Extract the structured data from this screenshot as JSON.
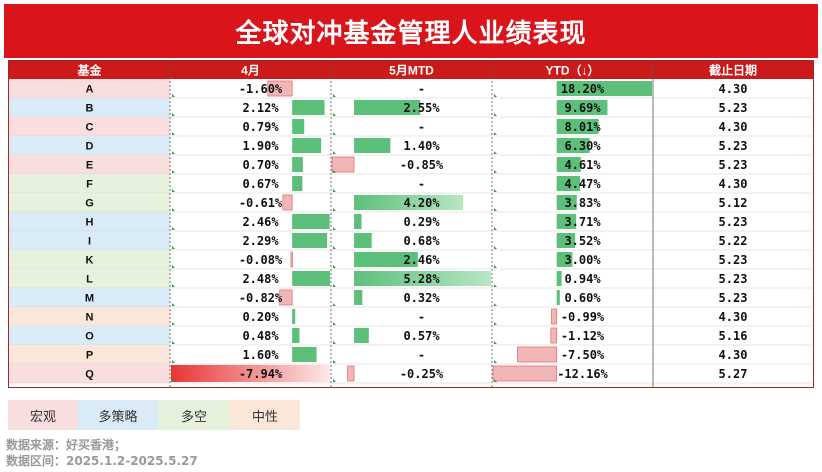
{
  "title": "全球对冲基金管理人业绩表现",
  "colors": {
    "banner": "#d9141b",
    "header": "#cc1a1a",
    "positive_bar": "#5cc07a",
    "negative_bar": "#f3b6b6",
    "macro": "#f8dede",
    "multi_strategy": "#d9ebf7",
    "long_short": "#e6f2dc",
    "neutral": "#fbe7da"
  },
  "legend": [
    {
      "label": "宏观",
      "color": "#f8dede"
    },
    {
      "label": "多策略",
      "color": "#d9ebf7"
    },
    {
      "label": "多空",
      "color": "#e6f2dc"
    },
    {
      "label": "中性",
      "color": "#fbe7da"
    }
  ],
  "source": [
    "数据来源：好买香港；",
    "数据区间：2025.1.2-2025.5.27"
  ],
  "chart_data": {
    "type": "table",
    "columns": [
      "基金",
      "4月",
      "5月MTD",
      "YTD（↓）",
      "截止日期"
    ],
    "rows": [
      {
        "fund": "A",
        "category": "macro",
        "apr": -1.6,
        "apr_label": "-1.60%",
        "may": null,
        "may_label": "-",
        "ytd": 18.2,
        "ytd_label": "18.20%",
        "date": "4.30"
      },
      {
        "fund": "B",
        "category": "multi_strategy",
        "apr": 2.12,
        "apr_label": "2.12%",
        "may": 2.55,
        "may_label": "2.55%",
        "ytd": 9.69,
        "ytd_label": "9.69%",
        "date": "5.23"
      },
      {
        "fund": "C",
        "category": "macro",
        "apr": 0.79,
        "apr_label": "0.79%",
        "may": null,
        "may_label": "-",
        "ytd": 8.01,
        "ytd_label": "8.01%",
        "date": "4.30"
      },
      {
        "fund": "D",
        "category": "multi_strategy",
        "apr": 1.9,
        "apr_label": "1.90%",
        "may": 1.4,
        "may_label": "1.40%",
        "ytd": 6.3,
        "ytd_label": "6.30%",
        "date": "5.23"
      },
      {
        "fund": "E",
        "category": "macro",
        "apr": 0.7,
        "apr_label": "0.70%",
        "may": -0.85,
        "may_label": "-0.85%",
        "ytd": 4.61,
        "ytd_label": "4.61%",
        "date": "5.23"
      },
      {
        "fund": "F",
        "category": "long_short",
        "apr": 0.67,
        "apr_label": "0.67%",
        "may": null,
        "may_label": "-",
        "ytd": 4.47,
        "ytd_label": "4.47%",
        "date": "4.30"
      },
      {
        "fund": "G",
        "category": "long_short",
        "apr": -0.61,
        "apr_label": "-0.61%",
        "may": 4.2,
        "may_label": "4.20%",
        "ytd": 3.83,
        "ytd_label": "3.83%",
        "date": "5.12"
      },
      {
        "fund": "H",
        "category": "multi_strategy",
        "apr": 2.46,
        "apr_label": "2.46%",
        "may": 0.29,
        "may_label": "0.29%",
        "ytd": 3.71,
        "ytd_label": "3.71%",
        "date": "5.23"
      },
      {
        "fund": "I",
        "category": "multi_strategy",
        "apr": 2.29,
        "apr_label": "2.29%",
        "may": 0.68,
        "may_label": "0.68%",
        "ytd": 3.52,
        "ytd_label": "3.52%",
        "date": "5.22"
      },
      {
        "fund": "K",
        "category": "long_short",
        "apr": -0.08,
        "apr_label": "-0.08%",
        "may": 2.46,
        "may_label": "2.46%",
        "ytd": 3.0,
        "ytd_label": "3.00%",
        "date": "5.23"
      },
      {
        "fund": "L",
        "category": "long_short",
        "apr": 2.48,
        "apr_label": "2.48%",
        "may": 5.28,
        "may_label": "5.28%",
        "ytd": 0.94,
        "ytd_label": "0.94%",
        "date": "5.23"
      },
      {
        "fund": "M",
        "category": "multi_strategy",
        "apr": -0.82,
        "apr_label": "-0.82%",
        "may": 0.32,
        "may_label": "0.32%",
        "ytd": 0.6,
        "ytd_label": "0.60%",
        "date": "5.23"
      },
      {
        "fund": "N",
        "category": "neutral",
        "apr": 0.2,
        "apr_label": "0.20%",
        "may": null,
        "may_label": "-",
        "ytd": -0.99,
        "ytd_label": "-0.99%",
        "date": "4.30"
      },
      {
        "fund": "O",
        "category": "multi_strategy",
        "apr": 0.48,
        "apr_label": "0.48%",
        "may": 0.57,
        "may_label": "0.57%",
        "ytd": -1.12,
        "ytd_label": "-1.12%",
        "date": "5.16"
      },
      {
        "fund": "P",
        "category": "neutral",
        "apr": 1.6,
        "apr_label": "1.60%",
        "may": null,
        "may_label": "-",
        "ytd": -7.5,
        "ytd_label": "-7.50%",
        "date": "4.30"
      },
      {
        "fund": "Q",
        "category": "macro",
        "apr": -7.94,
        "apr_label": "-7.94%",
        "may": -0.25,
        "may_label": "-0.25%",
        "ytd": -12.16,
        "ytd_label": "-12.16%",
        "date": "5.27"
      }
    ]
  }
}
